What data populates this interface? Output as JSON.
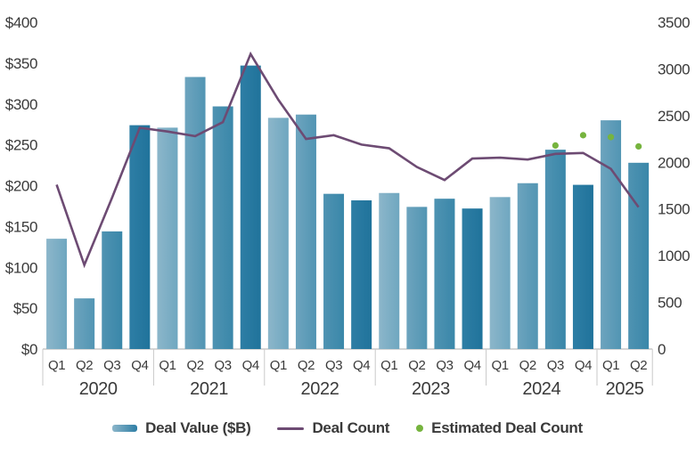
{
  "chart_data": {
    "type": "bar+line",
    "title": "",
    "legend": [
      "Deal Value ($B)",
      "Deal Count",
      "Estimated Deal Count"
    ],
    "y_left_axis": {
      "min": 0,
      "max": 400,
      "tick_step": 50,
      "prefix": "$",
      "tick_labels": [
        "$0",
        "$50",
        "$100",
        "$150",
        "$200",
        "$250",
        "$300",
        "$350",
        "$400"
      ]
    },
    "y_right_axis": {
      "min": 0,
      "max": 3500,
      "tick_step": 500,
      "tick_labels": [
        "0",
        "500",
        "1000",
        "1500",
        "2000",
        "2500",
        "3000",
        "3500"
      ]
    },
    "groups": [
      {
        "year": "2020",
        "quarters": [
          "Q1",
          "Q2",
          "Q3",
          "Q4"
        ]
      },
      {
        "year": "2021",
        "quarters": [
          "Q1",
          "Q2",
          "Q3",
          "Q4"
        ]
      },
      {
        "year": "2022",
        "quarters": [
          "Q1",
          "Q2",
          "Q3",
          "Q4"
        ]
      },
      {
        "year": "2023",
        "quarters": [
          "Q1",
          "Q2",
          "Q3",
          "Q4"
        ]
      },
      {
        "year": "2024",
        "quarters": [
          "Q1",
          "Q2",
          "Q3",
          "Q4"
        ]
      },
      {
        "year": "2025",
        "quarters": [
          "Q1",
          "Q2"
        ]
      }
    ],
    "series": [
      {
        "name": "Deal Value ($B)",
        "type": "bar",
        "axis": "left",
        "values": [
          135,
          62,
          144,
          274,
          271,
          333,
          297,
          347,
          283,
          287,
          190,
          182,
          191,
          174,
          184,
          172,
          186,
          203,
          244,
          201,
          280,
          228
        ],
        "shade_index": [
          0,
          1,
          2,
          3,
          0,
          1,
          2,
          3,
          0,
          1,
          2,
          3,
          0,
          1,
          2,
          3,
          0,
          1,
          2,
          3,
          1,
          2
        ]
      },
      {
        "name": "Deal Count",
        "type": "line",
        "axis": "right",
        "values": [
          1760,
          900,
          1620,
          2370,
          2330,
          2280,
          2430,
          3160,
          2670,
          2250,
          2290,
          2190,
          2150,
          1950,
          1810,
          2040,
          2050,
          2030,
          2090,
          2100,
          1930,
          1520
        ]
      },
      {
        "name": "Estimated Deal Count",
        "type": "scatter",
        "axis": "right",
        "values": [
          null,
          null,
          null,
          null,
          null,
          null,
          null,
          null,
          null,
          null,
          null,
          null,
          null,
          null,
          null,
          null,
          null,
          null,
          2180,
          2290,
          2270,
          2170
        ]
      }
    ]
  },
  "colors": {
    "bar_shades": [
      [
        "#8cb6ca",
        "#6fa7c0"
      ],
      [
        "#6da4be",
        "#5295b3"
      ],
      [
        "#4f93b2",
        "#3a87a9"
      ],
      [
        "#2e7ea5",
        "#20739b"
      ]
    ],
    "line": "#6d4b73",
    "dot": "#76b43e",
    "axis_text": "#3a3a3a",
    "grid": "#c9c9c9",
    "background": "#ffffff"
  }
}
